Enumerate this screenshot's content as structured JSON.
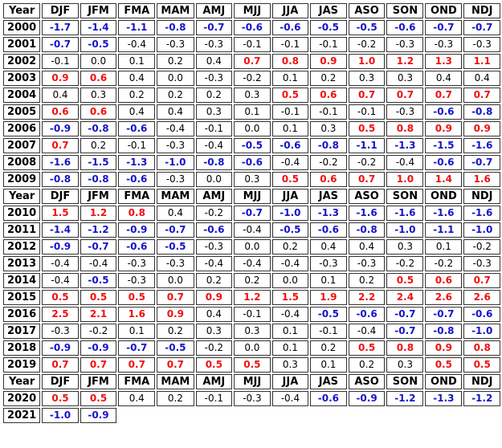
{
  "header": {
    "year_label": "Year",
    "seasons": [
      "DJF",
      "JFM",
      "FMA",
      "MAM",
      "AMJ",
      "MJJ",
      "JJA",
      "JAS",
      "ASO",
      "SON",
      "OND",
      "NDJ"
    ]
  },
  "colors": {
    "warm": "#f01010",
    "cool": "#1414c8",
    "neutral": "#000000",
    "border": "#333333"
  },
  "blocks": [
    {
      "show_header": true,
      "rows": [
        {
          "year": "2000",
          "values": [
            "-1.7",
            "-1.4",
            "-1.1",
            "-0.8",
            "-0.7",
            "-0.6",
            "-0.6",
            "-0.5",
            "-0.5",
            "-0.6",
            "-0.7",
            "-0.7"
          ]
        },
        {
          "year": "2001",
          "values": [
            "-0.7",
            "-0.5",
            "-0.4",
            "-0.3",
            "-0.3",
            "-0.1",
            "-0.1",
            "-0.1",
            "-0.2",
            "-0.3",
            "-0.3",
            "-0.3"
          ]
        },
        {
          "year": "2002",
          "values": [
            "-0.1",
            "0.0",
            "0.1",
            "0.2",
            "0.4",
            "0.7",
            "0.8",
            "0.9",
            "1.0",
            "1.2",
            "1.3",
            "1.1"
          ]
        },
        {
          "year": "2003",
          "values": [
            "0.9",
            "0.6",
            "0.4",
            "0.0",
            "-0.3",
            "-0.2",
            "0.1",
            "0.2",
            "0.3",
            "0.3",
            "0.4",
            "0.4"
          ]
        },
        {
          "year": "2004",
          "values": [
            "0.4",
            "0.3",
            "0.2",
            "0.2",
            "0.2",
            "0.3",
            "0.5",
            "0.6",
            "0.7",
            "0.7",
            "0.7",
            "0.7"
          ]
        },
        {
          "year": "2005",
          "values": [
            "0.6",
            "0.6",
            "0.4",
            "0.4",
            "0.3",
            "0.1",
            "-0.1",
            "-0.1",
            "-0.1",
            "-0.3",
            "-0.6",
            "-0.8"
          ]
        },
        {
          "year": "2006",
          "values": [
            "-0.9",
            "-0.8",
            "-0.6",
            "-0.4",
            "-0.1",
            "0.0",
            "0.1",
            "0.3",
            "0.5",
            "0.8",
            "0.9",
            "0.9"
          ]
        },
        {
          "year": "2007",
          "values": [
            "0.7",
            "0.2",
            "-0.1",
            "-0.3",
            "-0.4",
            "-0.5",
            "-0.6",
            "-0.8",
            "-1.1",
            "-1.3",
            "-1.5",
            "-1.6"
          ]
        },
        {
          "year": "2008",
          "values": [
            "-1.6",
            "-1.5",
            "-1.3",
            "-1.0",
            "-0.8",
            "-0.6",
            "-0.4",
            "-0.2",
            "-0.2",
            "-0.4",
            "-0.6",
            "-0.7"
          ]
        },
        {
          "year": "2009",
          "values": [
            "-0.8",
            "-0.8",
            "-0.6",
            "-0.3",
            "0.0",
            "0.3",
            "0.5",
            "0.6",
            "0.7",
            "1.0",
            "1.4",
            "1.6"
          ]
        }
      ]
    },
    {
      "show_header": true,
      "rows": [
        {
          "year": "2010",
          "values": [
            "1.5",
            "1.2",
            "0.8",
            "0.4",
            "-0.2",
            "-0.7",
            "-1.0",
            "-1.3",
            "-1.6",
            "-1.6",
            "-1.6",
            "-1.6"
          ]
        },
        {
          "year": "2011",
          "values": [
            "-1.4",
            "-1.2",
            "-0.9",
            "-0.7",
            "-0.6",
            "-0.4",
            "-0.5",
            "-0.6",
            "-0.8",
            "-1.0",
            "-1.1",
            "-1.0"
          ]
        },
        {
          "year": "2012",
          "values": [
            "-0.9",
            "-0.7",
            "-0.6",
            "-0.5",
            "-0.3",
            "0.0",
            "0.2",
            "0.4",
            "0.4",
            "0.3",
            "0.1",
            "-0.2"
          ]
        },
        {
          "year": "2013",
          "values": [
            "-0.4",
            "-0.4",
            "-0.3",
            "-0.3",
            "-0.4",
            "-0.4",
            "-0.4",
            "-0.3",
            "-0.3",
            "-0.2",
            "-0.2",
            "-0.3"
          ]
        },
        {
          "year": "2014",
          "values": [
            "-0.4",
            "-0.5",
            "-0.3",
            "0.0",
            "0.2",
            "0.2",
            "0.0",
            "0.1",
            "0.2",
            "0.5",
            "0.6",
            "0.7"
          ]
        },
        {
          "year": "2015",
          "values": [
            "0.5",
            "0.5",
            "0.5",
            "0.7",
            "0.9",
            "1.2",
            "1.5",
            "1.9",
            "2.2",
            "2.4",
            "2.6",
            "2.6"
          ]
        },
        {
          "year": "2016",
          "values": [
            "2.5",
            "2.1",
            "1.6",
            "0.9",
            "0.4",
            "-0.1",
            "-0.4",
            "-0.5",
            "-0.6",
            "-0.7",
            "-0.7",
            "-0.6"
          ]
        },
        {
          "year": "2017",
          "values": [
            "-0.3",
            "-0.2",
            "0.1",
            "0.2",
            "0.3",
            "0.3",
            "0.1",
            "-0.1",
            "-0.4",
            "-0.7",
            "-0.8",
            "-1.0"
          ]
        },
        {
          "year": "2018",
          "values": [
            "-0.9",
            "-0.9",
            "-0.7",
            "-0.5",
            "-0.2",
            "0.0",
            "0.1",
            "0.2",
            "0.5",
            "0.8",
            "0.9",
            "0.8"
          ]
        },
        {
          "year": "2019",
          "values": [
            "0.7",
            "0.7",
            "0.7",
            "0.7",
            "0.5",
            "0.5",
            "0.3",
            "0.1",
            "0.2",
            "0.3",
            "0.5",
            "0.5"
          ]
        }
      ]
    },
    {
      "show_header": true,
      "rows": [
        {
          "year": "2020",
          "values": [
            "0.5",
            "0.5",
            "0.4",
            "0.2",
            "-0.1",
            "-0.3",
            "-0.4",
            "-0.6",
            "-0.9",
            "-1.2",
            "-1.3",
            "-1.2"
          ]
        },
        {
          "year": "2021",
          "values": [
            "-1.0",
            "-0.9"
          ]
        }
      ]
    }
  ]
}
